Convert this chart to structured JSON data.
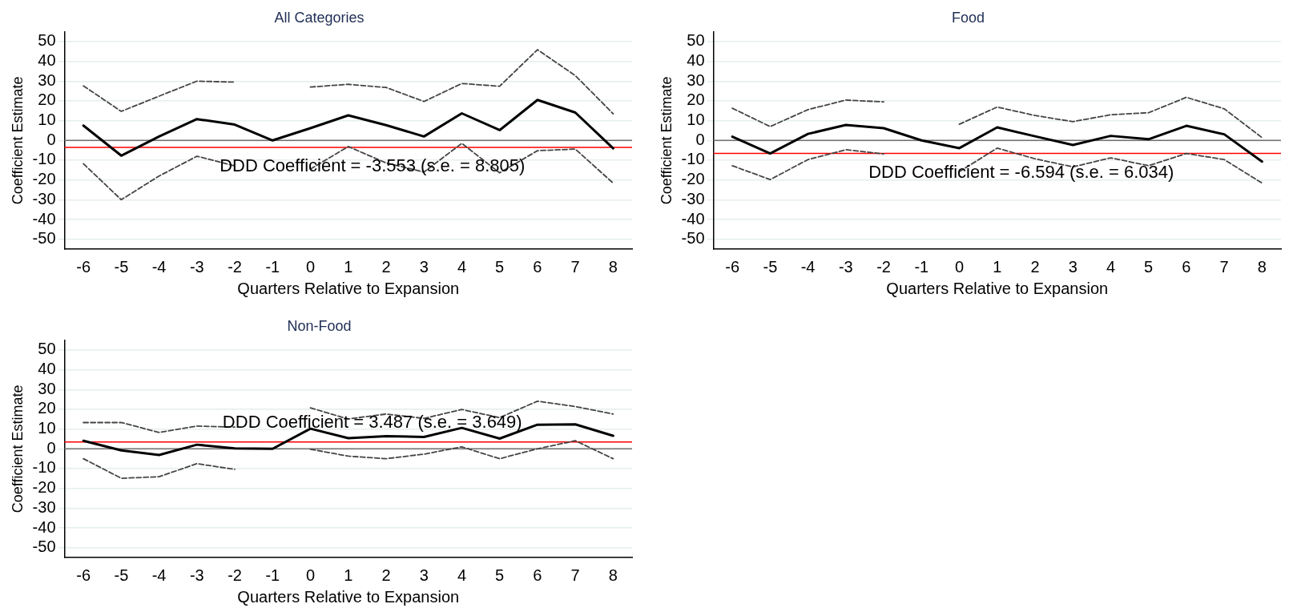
{
  "chart_data": [
    {
      "type": "line",
      "title": "All Categories",
      "xlabel": "Quarters Relative to Expansion",
      "ylabel": "Coefficient Estimate",
      "categories": [
        "-6",
        "-5",
        "-4",
        "-3",
        "-2",
        "-1",
        "0",
        "1",
        "2",
        "3",
        "4",
        "5",
        "6",
        "7",
        "8"
      ],
      "series": [
        {
          "color": "#000000",
          "line_style": "solid",
          "values": [
            7.5,
            -7.7,
            2,
            10.8,
            8,
            0,
            6.2,
            12.7,
            7.7,
            2,
            13.7,
            5.2,
            20.5,
            14.1,
            -4
          ]
        },
        {
          "color": "#444444",
          "line_style": "dashed",
          "values": [
            27.6,
            14.7,
            22.4,
            30,
            29.5,
            null,
            27,
            28.4,
            26.8,
            19.7,
            28.8,
            27.4,
            45.9,
            32.8,
            13.5
          ]
        },
        {
          "color": "#444444",
          "line_style": "dashed",
          "values": [
            -11.8,
            -30,
            -18,
            -8,
            -12.9,
            null,
            -14.5,
            -3.1,
            -11.4,
            -16,
            -1.5,
            -16.4,
            -5.2,
            -4.4,
            -21.6
          ]
        }
      ],
      "ylim": [
        -55,
        55
      ],
      "yticks": [
        -50,
        -40,
        -30,
        -20,
        -10,
        0,
        10,
        20,
        30,
        40,
        50
      ],
      "grid": "y",
      "legend": false,
      "marker": "none",
      "ref_lines": [
        {
          "axis": "y",
          "value": 0,
          "color": "#707070"
        },
        {
          "axis": "y",
          "value": -3.553,
          "color": "#ff0000"
        }
      ],
      "annotations": [
        "DDD Coefficient = -3.553 (s.e. = 8.805)"
      ]
    },
    {
      "type": "line",
      "title": "Food",
      "xlabel": "Quarters Relative to Expansion",
      "ylabel": "Coefficient Estimate",
      "categories": [
        "-6",
        "-5",
        "-4",
        "-3",
        "-2",
        "-1",
        "0",
        "1",
        "2",
        "3",
        "4",
        "5",
        "6",
        "7",
        "8"
      ],
      "series": [
        {
          "color": "#000000",
          "line_style": "solid",
          "values": [
            1.9,
            -6.6,
            3.3,
            7.8,
            6.2,
            0,
            -3.9,
            6.6,
            2.1,
            -2.3,
            2.3,
            0.6,
            7.4,
            3.1,
            -10.7
          ]
        },
        {
          "color": "#444444",
          "line_style": "dashed",
          "values": [
            16.3,
            7,
            15.6,
            20.4,
            19.5,
            null,
            8.2,
            16.9,
            12.6,
            9.5,
            13,
            14,
            21.8,
            16,
            1.4
          ]
        },
        {
          "color": "#444444",
          "line_style": "dashed",
          "values": [
            -12.8,
            -19.8,
            -9.7,
            -4.7,
            -6.8,
            null,
            -15.8,
            -3.9,
            -9.3,
            -13.4,
            -8.8,
            -12.8,
            -6.6,
            -9.7,
            -21.6
          ]
        }
      ],
      "ylim": [
        -55,
        55
      ],
      "yticks": [
        -50,
        -40,
        -30,
        -20,
        -10,
        0,
        10,
        20,
        30,
        40,
        50
      ],
      "grid": "y",
      "legend": false,
      "marker": "none",
      "ref_lines": [
        {
          "axis": "y",
          "value": 0,
          "color": "#707070"
        },
        {
          "axis": "y",
          "value": -6.594,
          "color": "#ff0000"
        }
      ],
      "annotations": [
        "DDD Coefficient = -6.594 (s.e. = 6.034)"
      ]
    },
    {
      "type": "line",
      "title": "Non-Food",
      "xlabel": "Quarters Relative to Expansion",
      "ylabel": "Coefficient Estimate",
      "categories": [
        "-6",
        "-5",
        "-4",
        "-3",
        "-2",
        "-1",
        "0",
        "1",
        "2",
        "3",
        "4",
        "5",
        "6",
        "7",
        "8"
      ],
      "series": [
        {
          "color": "#000000",
          "line_style": "solid",
          "values": [
            4.1,
            -0.8,
            -3.1,
            2.1,
            0.2,
            0,
            10.2,
            5.4,
            6.4,
            6,
            10.6,
            5.2,
            12.2,
            12.4,
            6.6
          ]
        },
        {
          "color": "#444444",
          "line_style": "dashed",
          "values": [
            13.3,
            13.3,
            8.3,
            11.5,
            11,
            null,
            20.7,
            15.1,
            17.6,
            15.4,
            19.9,
            15.8,
            24.1,
            21.4,
            17.6
          ]
        },
        {
          "color": "#444444",
          "line_style": "dashed",
          "values": [
            -5,
            -14.9,
            -14.1,
            -7.5,
            -10.4,
            null,
            -0.2,
            -3.7,
            -5,
            -2.7,
            1,
            -5,
            0,
            4.1,
            -5
          ]
        }
      ],
      "ylim": [
        -55,
        55
      ],
      "yticks": [
        -50,
        -40,
        -30,
        -20,
        -10,
        0,
        10,
        20,
        30,
        40,
        50
      ],
      "grid": "y",
      "legend": false,
      "marker": "none",
      "ref_lines": [
        {
          "axis": "y",
          "value": 0,
          "color": "#707070"
        },
        {
          "axis": "y",
          "value": 3.487,
          "color": "#ff0000"
        }
      ],
      "annotations": [
        "DDD Coefficient = 3.487 (s.e. = 3.649)"
      ]
    }
  ]
}
